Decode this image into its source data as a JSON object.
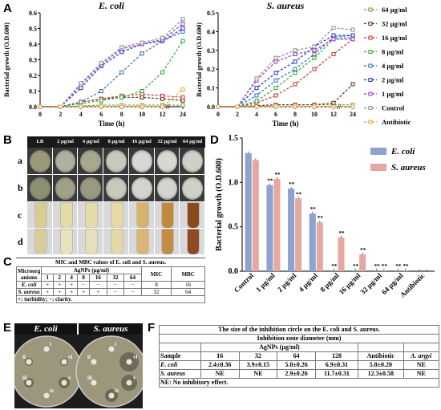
{
  "panel_labels": {
    "A": "A",
    "B": "B",
    "C": "C",
    "D": "D",
    "E": "E",
    "F": "F"
  },
  "chart_data": [
    {
      "type": "line",
      "title": "E. coli",
      "ylabel": "Bacterial growth (O.D.600)",
      "xlabel": "Time (h)",
      "x": [
        0,
        2,
        4,
        6,
        8,
        10,
        12,
        24
      ],
      "xticks": [
        "0",
        "2",
        "4",
        "6",
        "8",
        "10",
        "12",
        "24"
      ],
      "ylim": [
        0,
        0.6
      ],
      "yticks": [
        "0.0",
        "0.1",
        "0.2",
        "0.3",
        "0.4",
        "0.5",
        "0.6"
      ],
      "series": [
        {
          "name": "64 µg/ml",
          "color": "#7a9a2e",
          "values": [
            0,
            0,
            0.005,
            0.01,
            0.01,
            0.01,
            0.01,
            0.01
          ]
        },
        {
          "name": "32 µg/ml",
          "color": "#5b2c0e",
          "values": [
            0,
            0,
            0.03,
            0.05,
            0.06,
            0.06,
            0.05,
            0.04
          ]
        },
        {
          "name": "16 µg/ml",
          "color": "#c0392b",
          "values": [
            0,
            0,
            0.03,
            0.05,
            0.07,
            0.08,
            0.07,
            0.06
          ]
        },
        {
          "name": "8 µg/ml",
          "color": "#2eaa3a",
          "values": [
            0,
            0,
            0.02,
            0.04,
            0.06,
            0.1,
            0.22,
            0.42
          ]
        },
        {
          "name": "4 µg/ml",
          "color": "#2f6fb5",
          "values": [
            0,
            0,
            0.03,
            0.1,
            0.22,
            0.34,
            0.42,
            0.48
          ]
        },
        {
          "name": "2 µg/ml",
          "color": "#2030c8",
          "values": [
            0,
            0,
            0.12,
            0.26,
            0.35,
            0.4,
            0.42,
            0.5
          ]
        },
        {
          "name": "1 µg/ml",
          "color": "#9b37c8",
          "values": [
            0,
            0,
            0.14,
            0.27,
            0.37,
            0.4,
            0.43,
            0.53
          ]
        },
        {
          "name": "Control",
          "color": "#8d8d8d",
          "values": [
            0,
            0,
            0.15,
            0.28,
            0.38,
            0.41,
            0.44,
            0.56
          ]
        },
        {
          "name": "Antibiotic",
          "color": "#e9a13a",
          "values": [
            0,
            0,
            0,
            0,
            0,
            0,
            0,
            0.11
          ]
        }
      ]
    },
    {
      "type": "line",
      "title": "S. aureus",
      "ylabel": "Bacterial growth (O.D.600)",
      "xlabel": "Time (h)",
      "x": [
        0,
        2,
        4,
        6,
        8,
        10,
        12,
        24
      ],
      "xticks": [
        "0",
        "2",
        "4",
        "6",
        "8",
        "10",
        "12",
        "24"
      ],
      "ylim": [
        0,
        0.5
      ],
      "yticks": [
        "0.0",
        "0.1",
        "0.2",
        "0.3",
        "0.4",
        "0.5"
      ],
      "series": [
        {
          "name": "64 µg/ml",
          "color": "#7a9a2e",
          "values": [
            0,
            0,
            0.005,
            0.01,
            0.01,
            0.01,
            0.01,
            0.01
          ]
        },
        {
          "name": "32 µg/ml",
          "color": "#5b2c0e",
          "values": [
            0,
            0,
            0.005,
            0.01,
            0.01,
            0.01,
            0.02,
            0.12
          ]
        },
        {
          "name": "16 µg/ml",
          "color": "#c0392b",
          "values": [
            0,
            0,
            0.02,
            0.06,
            0.12,
            0.2,
            0.28,
            0.36
          ]
        },
        {
          "name": "8 µg/ml",
          "color": "#2eaa3a",
          "values": [
            0,
            0,
            0.03,
            0.1,
            0.18,
            0.26,
            0.36,
            0.37
          ]
        },
        {
          "name": "4 µg/ml",
          "color": "#2f6fb5",
          "values": [
            0,
            0,
            0.06,
            0.14,
            0.2,
            0.28,
            0.37,
            0.38
          ]
        },
        {
          "name": "2 µg/ml",
          "color": "#2030c8",
          "values": [
            0,
            0,
            0.1,
            0.18,
            0.24,
            0.32,
            0.38,
            0.38
          ]
        },
        {
          "name": "1 µg/ml",
          "color": "#9b37c8",
          "values": [
            0,
            0,
            0.14,
            0.24,
            0.28,
            0.3,
            0.36,
            0.36
          ]
        },
        {
          "name": "Control",
          "color": "#8d8d8d",
          "values": [
            0,
            0,
            0.15,
            0.26,
            0.3,
            0.32,
            0.42,
            0.41
          ]
        },
        {
          "name": "Antibiotic",
          "color": "#e9a13a",
          "values": [
            0,
            0,
            0,
            0,
            0,
            0,
            0,
            0
          ]
        }
      ]
    },
    {
      "type": "bar",
      "title": "",
      "ylabel": "Bacterial growth (O.D.600)",
      "xlabel": "",
      "categories": [
        "Control",
        "1 µg/ml",
        "2 µg/ml",
        "4 µg/ml",
        "8 µg/ml",
        "16 µg/ml",
        "32 µg/ml",
        "64 µg/ml",
        "Antibiotic"
      ],
      "ylim": [
        0,
        1.5
      ],
      "yticks": [
        "0.0",
        "0.5",
        "1.0",
        "1.5"
      ],
      "legend": "top-right",
      "significance": [
        "",
        "**",
        "**",
        "**",
        "**",
        "**",
        "**",
        "**",
        ""
      ],
      "series": [
        {
          "name": "E. coli",
          "color": "#8ea3cf",
          "values": [
            1.33,
            0.97,
            0.93,
            0.65,
            0.01,
            0.01,
            0.01,
            0.01,
            0.0
          ]
        },
        {
          "name": "S. aureus",
          "color": "#e5a8a0",
          "values": [
            1.25,
            1.04,
            0.82,
            0.55,
            0.38,
            0.19,
            0.01,
            0.01,
            0.0
          ]
        }
      ]
    }
  ],
  "panel_b": {
    "header": [
      "LB",
      "2 µg/ml",
      "4 µg/ml",
      "8 µg/ml",
      "16 µg/ml",
      "32 µg/ml",
      "64 µg/ml"
    ],
    "rows": [
      "a",
      "b",
      "c",
      "d"
    ]
  },
  "panel_c": {
    "title": "MIC and MBC values of E. coli and S. aureus.",
    "h_org": "Microorg anisms",
    "h_agnp": "AgNPs (µg/ml)",
    "h_mic": "MIC",
    "h_mbc": "MBC",
    "concs": [
      "1",
      "2",
      "4",
      "8",
      "16",
      "32",
      "64"
    ],
    "rows": [
      {
        "name": "E. coli",
        "cells": [
          "+",
          "+",
          "+",
          "−",
          "−",
          "−",
          "−"
        ],
        "mic": "8",
        "mbc": "16"
      },
      {
        "name": "S. aureus",
        "cells": [
          "+",
          "+",
          "+",
          "+",
          "+",
          "−",
          "−"
        ],
        "mic": "32",
        "mbc": "64"
      }
    ],
    "note": "+: turbidity;  −: clarity."
  },
  "panel_e": {
    "left_title": "E. coli",
    "right_title": "S. aureus",
    "well_labels": [
      "i",
      "ii",
      "iii",
      "iv",
      "v",
      "vi"
    ]
  },
  "panel_f": {
    "title": "The size of the inhibition circle on the E. coli and S. aureus.",
    "subheader": "Inhibition zone diameter (mm)",
    "agnp_label": "AgNPs (µg/ml)",
    "cols": [
      "Sample",
      "16",
      "32",
      "64",
      "128",
      "Antibiotic",
      "A. argyi"
    ],
    "rows": [
      [
        "E. coli",
        "2.4±0.36",
        "3.9±0.15",
        "5.8±0.26",
        "6.9±0.31",
        "5.8±0.20",
        "NE"
      ],
      [
        "S. aureus",
        "NE",
        "NE",
        "2.9±0.26",
        "11.7±0.31",
        "12.3±0.58",
        "NE"
      ]
    ],
    "note": "NE: No inhibitory effect."
  }
}
